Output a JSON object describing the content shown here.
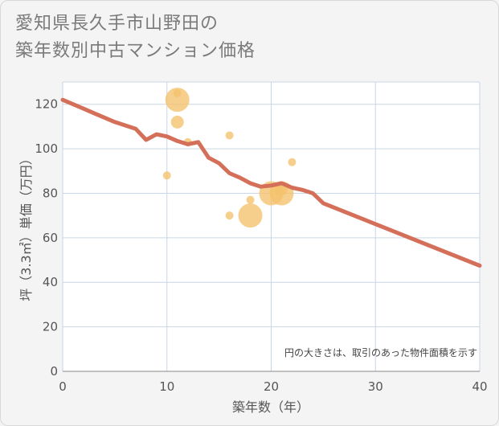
{
  "title_line1": "愛知県長久手市山野田の",
  "title_line2": "築年数別中古マンション価格",
  "chart_data": {
    "type": "scatter",
    "xlabel": "築年数（年）",
    "ylabel": "坪（3.3㎡）単価（万円）",
    "xlim": [
      0,
      40
    ],
    "ylim": [
      0,
      130
    ],
    "xticks": [
      0,
      10,
      20,
      30,
      40
    ],
    "yticks": [
      0,
      20,
      40,
      60,
      80,
      100,
      120
    ],
    "grid": true,
    "note": "円の大きさは、取引のあった物件面積を示す",
    "colors": {
      "bubble": "#f5c26b",
      "line": "#d4705a",
      "grid": "#c9d6e3"
    },
    "bubbles": [
      {
        "x": 10,
        "y": 88,
        "size": 1
      },
      {
        "x": 11,
        "y": 122,
        "size": 4
      },
      {
        "x": 11,
        "y": 125,
        "size": 1
      },
      {
        "x": 11,
        "y": 112,
        "size": 2
      },
      {
        "x": 12,
        "y": 103,
        "size": 1
      },
      {
        "x": 16,
        "y": 106,
        "size": 1
      },
      {
        "x": 16,
        "y": 70,
        "size": 1
      },
      {
        "x": 18,
        "y": 70,
        "size": 4
      },
      {
        "x": 18,
        "y": 77,
        "size": 1
      },
      {
        "x": 20,
        "y": 80,
        "size": 4
      },
      {
        "x": 21,
        "y": 80,
        "size": 4
      },
      {
        "x": 21,
        "y": 82,
        "size": 2
      },
      {
        "x": 22,
        "y": 94,
        "size": 1
      }
    ],
    "trend": [
      {
        "x": 0,
        "y": 122
      },
      {
        "x": 1,
        "y": 120
      },
      {
        "x": 2,
        "y": 118
      },
      {
        "x": 3,
        "y": 116
      },
      {
        "x": 4,
        "y": 114
      },
      {
        "x": 5,
        "y": 112
      },
      {
        "x": 6,
        "y": 110.5
      },
      {
        "x": 7,
        "y": 109
      },
      {
        "x": 8,
        "y": 104
      },
      {
        "x": 9,
        "y": 106.5
      },
      {
        "x": 10,
        "y": 105.5
      },
      {
        "x": 11,
        "y": 103.5
      },
      {
        "x": 12,
        "y": 102
      },
      {
        "x": 13,
        "y": 103
      },
      {
        "x": 14,
        "y": 96
      },
      {
        "x": 15,
        "y": 93.5
      },
      {
        "x": 16,
        "y": 89
      },
      {
        "x": 17,
        "y": 87
      },
      {
        "x": 18,
        "y": 84.5
      },
      {
        "x": 19,
        "y": 83
      },
      {
        "x": 20,
        "y": 83.5
      },
      {
        "x": 21,
        "y": 84.5
      },
      {
        "x": 22,
        "y": 82.5
      },
      {
        "x": 23,
        "y": 81.5
      },
      {
        "x": 24,
        "y": 80
      },
      {
        "x": 25,
        "y": 75.5
      },
      {
        "x": 40,
        "y": 47.5
      }
    ]
  }
}
